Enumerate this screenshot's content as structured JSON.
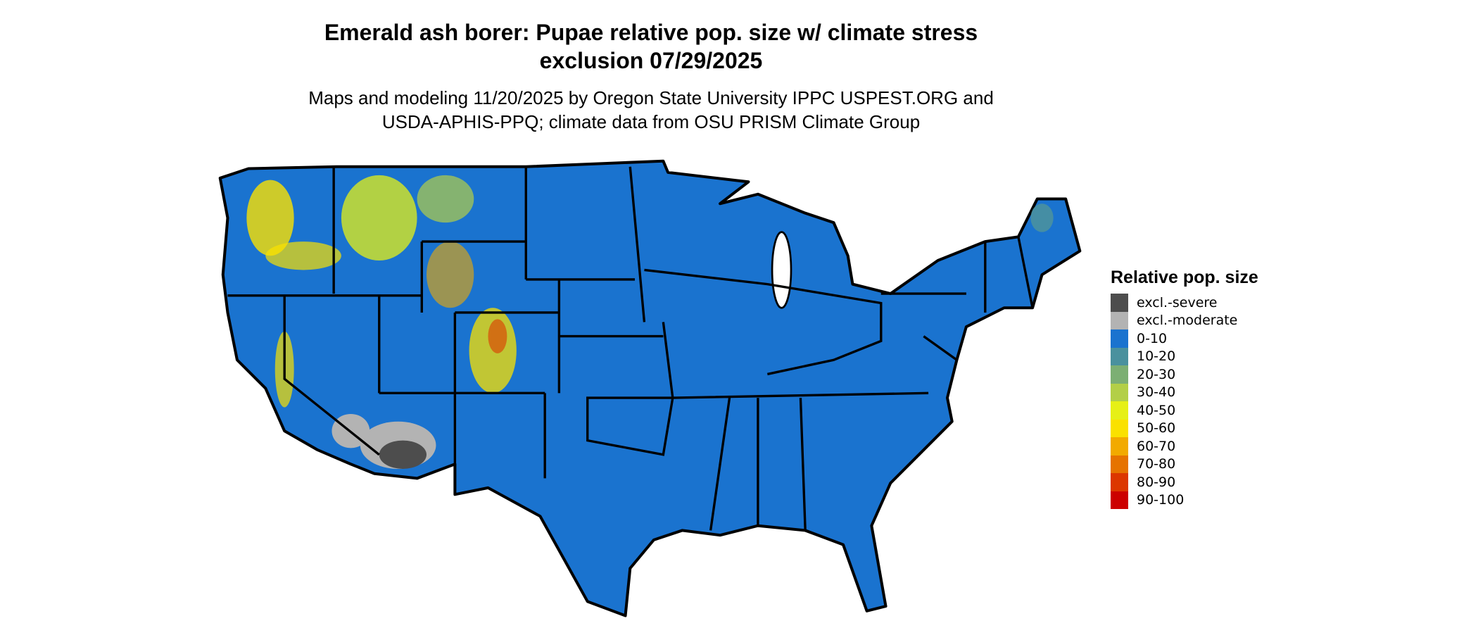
{
  "title_line1": "Emerald ash borer: Pupae relative pop. size w/ climate stress",
  "title_line2": "exclusion 07/29/2025",
  "subtitle_line1": "Maps and modeling 11/20/2025 by Oregon State University IPPC USPEST.ORG and",
  "subtitle_line2": "USDA-APHIS-PPQ; climate data from OSU PRISM Climate Group",
  "legend": {
    "title": "Relative pop. size",
    "items": [
      {
        "label": "excl.-severe",
        "color": "#4d4d4d"
      },
      {
        "label": "excl.-moderate",
        "color": "#b3b3b3"
      },
      {
        "label": "0-10",
        "color": "#1a73cf"
      },
      {
        "label": "10-20",
        "color": "#4a919e"
      },
      {
        "label": "20-30",
        "color": "#7caf73"
      },
      {
        "label": "30-40",
        "color": "#b3cf47"
      },
      {
        "label": "40-50",
        "color": "#e6f016"
      },
      {
        "label": "50-60",
        "color": "#fae100"
      },
      {
        "label": "60-70",
        "color": "#f2aa00"
      },
      {
        "label": "70-80",
        "color": "#e67300"
      },
      {
        "label": "80-90",
        "color": "#dc3700"
      },
      {
        "label": "90-100",
        "color": "#cc0000"
      }
    ]
  },
  "map": {
    "region": "Conterminous United States",
    "dominant_class": "0-10",
    "border_color": "#000000"
  }
}
